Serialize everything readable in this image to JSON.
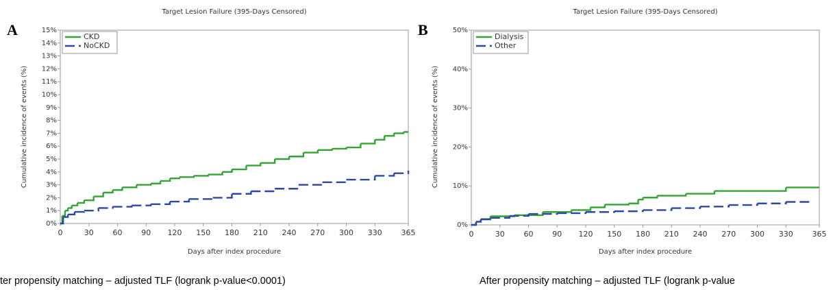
{
  "chart_data": [
    {
      "type": "line",
      "step": true,
      "panel_label": "A",
      "title": "Target Lesion Failure (395-Days Censored)",
      "y_label": "Cumulative incidence of events (%)",
      "x_label": "Days after index procedure",
      "caption": "ter propensity matching – adjusted TLF (logrank p-value<0.0001)",
      "xlim": [
        0,
        365
      ],
      "ylim": [
        0,
        15
      ],
      "xticks": [
        0,
        30,
        60,
        90,
        120,
        150,
        180,
        210,
        240,
        270,
        300,
        330,
        365
      ],
      "yticks": [
        {
          "value": 0,
          "label": "0%"
        },
        {
          "value": 1,
          "label": "1%"
        },
        {
          "value": 2,
          "label": "2%"
        },
        {
          "value": 3,
          "label": "3%"
        },
        {
          "value": 4,
          "label": "4%"
        },
        {
          "value": 5,
          "label": "5%"
        },
        {
          "value": 6,
          "label": "6%"
        },
        {
          "value": 7,
          "label": "7%"
        },
        {
          "value": 8,
          "label": "8%"
        },
        {
          "value": 9,
          "label": "9%"
        },
        {
          "value": 10,
          "label": "10%"
        },
        {
          "value": 11,
          "label": "11%"
        },
        {
          "value": 12,
          "label": "12%"
        },
        {
          "value": 13,
          "label": "13%"
        },
        {
          "value": 14,
          "label": "14%"
        },
        {
          "value": 15,
          "label": "15%"
        }
      ],
      "series": [
        {
          "name": "CKD",
          "color": "#33a333",
          "line_style": "solid",
          "x": [
            0,
            2,
            5,
            8,
            12,
            18,
            25,
            35,
            45,
            55,
            65,
            80,
            95,
            105,
            115,
            125,
            140,
            155,
            170,
            180,
            195,
            210,
            225,
            240,
            255,
            270,
            285,
            300,
            315,
            330,
            340,
            350,
            360,
            365
          ],
          "values": [
            0,
            0.6,
            1.0,
            1.2,
            1.4,
            1.6,
            1.8,
            2.1,
            2.4,
            2.6,
            2.8,
            3.0,
            3.1,
            3.3,
            3.5,
            3.6,
            3.7,
            3.8,
            4.0,
            4.2,
            4.5,
            4.7,
            5.0,
            5.2,
            5.5,
            5.7,
            5.8,
            5.9,
            6.2,
            6.5,
            6.8,
            7.0,
            7.1,
            7.1
          ]
        },
        {
          "name": "NoCKD",
          "color": "#2a48a8",
          "line_style": "dashed",
          "x": [
            0,
            3,
            8,
            15,
            25,
            40,
            55,
            75,
            95,
            115,
            135,
            160,
            180,
            200,
            225,
            250,
            275,
            300,
            330,
            350,
            365
          ],
          "values": [
            0,
            0.5,
            0.7,
            0.9,
            1.0,
            1.2,
            1.3,
            1.4,
            1.5,
            1.7,
            1.9,
            2.0,
            2.3,
            2.5,
            2.7,
            3.0,
            3.2,
            3.4,
            3.7,
            3.9,
            4.1
          ]
        }
      ]
    },
    {
      "type": "line",
      "step": true,
      "panel_label": "B",
      "title": "Target Lesion Failure (395-Days Censored)",
      "y_label": "Cumulative incidence of events (%)",
      "x_label": "Days after index procedure",
      "caption": "After propensity matching – adjusted TLF (logrank p-value",
      "xlim": [
        0,
        365
      ],
      "ylim": [
        0,
        50
      ],
      "xticks": [
        0,
        30,
        60,
        90,
        120,
        150,
        180,
        210,
        240,
        270,
        300,
        330,
        365
      ],
      "yticks": [
        {
          "value": 0,
          "label": "0%"
        },
        {
          "value": 10,
          "label": "10%"
        },
        {
          "value": 20,
          "label": "20%"
        },
        {
          "value": 30,
          "label": "30%"
        },
        {
          "value": 40,
          "label": "40%"
        },
        {
          "value": 50,
          "label": "50%"
        }
      ],
      "series": [
        {
          "name": "Dialysis",
          "color": "#33a333",
          "line_style": "solid",
          "x": [
            0,
            5,
            10,
            20,
            45,
            75,
            105,
            125,
            140,
            165,
            175,
            180,
            195,
            225,
            255,
            300,
            330,
            365
          ],
          "values": [
            0,
            0.8,
            1.5,
            2.2,
            2.5,
            3.3,
            3.8,
            4.5,
            5.2,
            5.5,
            6.5,
            7.0,
            7.5,
            8.0,
            8.7,
            8.7,
            9.6,
            9.6
          ]
        },
        {
          "name": "Other",
          "color": "#2a48a8",
          "line_style": "dashed",
          "x": [
            0,
            5,
            10,
            20,
            40,
            60,
            90,
            120,
            150,
            180,
            210,
            240,
            270,
            300,
            330,
            355
          ],
          "values": [
            0,
            0.8,
            1.4,
            1.8,
            2.3,
            2.8,
            3.0,
            3.3,
            3.5,
            3.8,
            4.3,
            4.7,
            5.1,
            5.5,
            5.9,
            6.5
          ]
        }
      ]
    }
  ]
}
